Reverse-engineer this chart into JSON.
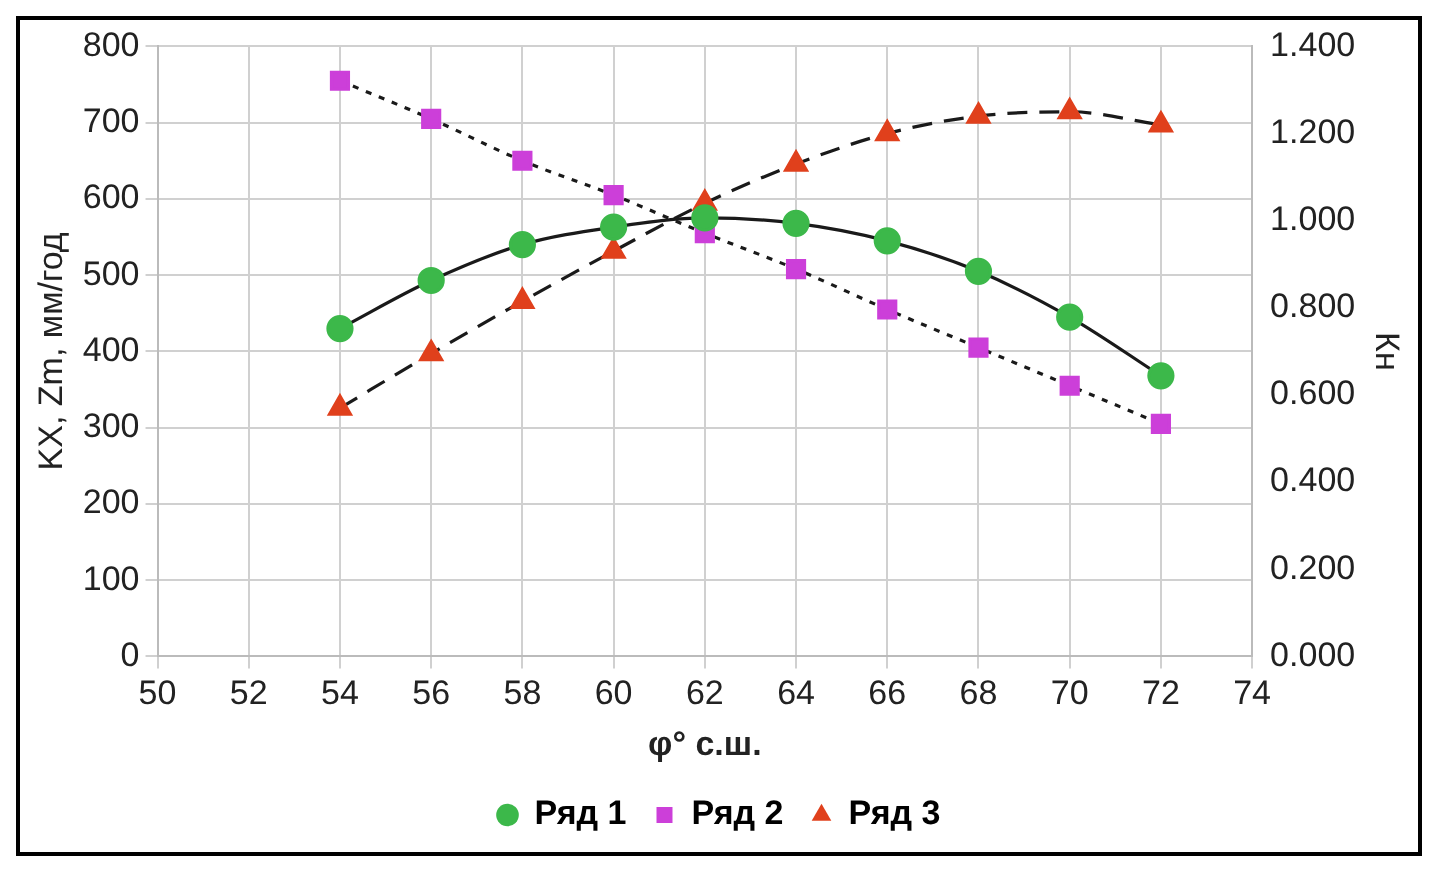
{
  "chart_data": {
    "type": "line",
    "xlabel": "φ° с.ш.",
    "ylabel": "KX, Zm, мм/год",
    "y2label": "Кн",
    "x": [
      54,
      56,
      58,
      60,
      62,
      64,
      66,
      68,
      70,
      72
    ],
    "series": [
      {
        "name": "Ряд 1",
        "color": "#3cb84a",
        "values": [
          430,
          493,
          540,
          563,
          575,
          568,
          545,
          505,
          445,
          368
        ],
        "marker": "circle",
        "line_style": "solid"
      },
      {
        "name": "Ряд 2",
        "color": "#cc3fd9",
        "values": [
          755,
          705,
          650,
          605,
          555,
          508,
          455,
          405,
          355,
          305
        ],
        "marker": "square",
        "line_style": "dotted"
      },
      {
        "name": "Ряд 3",
        "color": "#e0401c",
        "values": [
          0.57,
          0.695,
          0.815,
          0.93,
          1.04,
          1.13,
          1.2,
          1.24,
          1.25,
          1.22
        ],
        "marker": "triangle",
        "line_style": "dashed",
        "axis": "y2"
      }
    ],
    "xlim": [
      50,
      74
    ],
    "xticks": [
      50,
      52,
      54,
      56,
      58,
      60,
      62,
      64,
      66,
      68,
      70,
      72,
      74
    ],
    "ylim": [
      0,
      800
    ],
    "yticks": [
      0,
      100,
      200,
      300,
      400,
      500,
      600,
      700,
      800
    ],
    "y2lim": [
      0,
      1.4
    ],
    "y2ticks": [
      {
        "value": 0,
        "label": "0.000"
      },
      {
        "value": 0.2,
        "label": "0.200"
      },
      {
        "value": 0.4,
        "label": "0.400"
      },
      {
        "value": 0.6,
        "label": "0.600"
      },
      {
        "value": 0.8,
        "label": "0.800"
      },
      {
        "value": 1,
        "label": "1.000"
      },
      {
        "value": 1.2,
        "label": "1.200"
      },
      {
        "value": 1.4,
        "label": "1.400"
      }
    ],
    "grid": true,
    "legend": "bottom"
  }
}
